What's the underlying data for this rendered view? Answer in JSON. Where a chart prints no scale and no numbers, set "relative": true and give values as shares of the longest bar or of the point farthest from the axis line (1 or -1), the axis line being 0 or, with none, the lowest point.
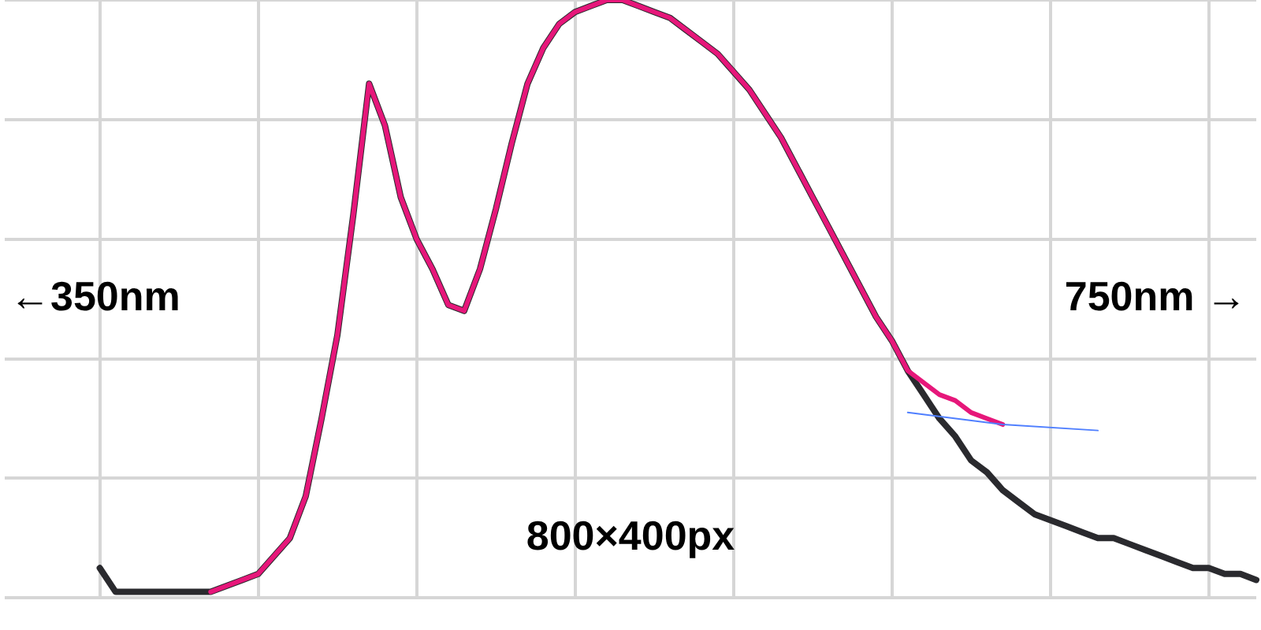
{
  "chart_data": {
    "type": "line",
    "relative": true,
    "grid": true,
    "legend": false,
    "categories": [
      null,
      null,
      null,
      null,
      null,
      null,
      null,
      null,
      null,
      null,
      null,
      null,
      null,
      null,
      null,
      null,
      null,
      null,
      null,
      null,
      null,
      null,
      null,
      null,
      null,
      null,
      null,
      null,
      null,
      null,
      null,
      null,
      null,
      null,
      null,
      null,
      null,
      null,
      null,
      null,
      null,
      null,
      null,
      null,
      null,
      null,
      null,
      null,
      null,
      null,
      null,
      null,
      null,
      null,
      null,
      null,
      null,
      null,
      null,
      null,
      null,
      null,
      null,
      null,
      null,
      null,
      null,
      null,
      null,
      null,
      null,
      null,
      null,
      null,
      null,
      null,
      null,
      null,
      null,
      null
    ],
    "annotations": [
      "←350nm",
      "750nm →",
      "800×400px"
    ],
    "series": [
      {
        "color": "#2a2a2e",
        "values": [
          null,
          null,
          null,
          null,
          null,
          null,
          0.05,
          0.01,
          0.01,
          0.01,
          0.01,
          0.01,
          0.01,
          0.01,
          0.02,
          0.03,
          0.04,
          0.07,
          0.1,
          0.17,
          0.3,
          0.44,
          0.64,
          0.86,
          0.79,
          0.67,
          0.6,
          0.55,
          0.49,
          0.48,
          0.55,
          0.65,
          0.76,
          0.86,
          0.92,
          0.96,
          0.98,
          0.99,
          1.0,
          1.0,
          0.99,
          0.98,
          0.97,
          0.95,
          0.93,
          0.91,
          0.88,
          0.85,
          0.81,
          0.77,
          0.72,
          0.67,
          0.62,
          0.57,
          0.52,
          0.47,
          0.43,
          0.38,
          0.34,
          0.3,
          0.27,
          0.23,
          0.21,
          0.18,
          0.16,
          0.14,
          0.13,
          0.12,
          0.11,
          0.1,
          0.1,
          0.09,
          0.08,
          0.07,
          0.06,
          0.05,
          0.05,
          0.04,
          0.04,
          0.03
        ]
      },
      {
        "color": "#e6177a",
        "values": [
          null,
          null,
          null,
          null,
          null,
          null,
          null,
          null,
          null,
          null,
          null,
          null,
          null,
          0.01,
          0.02,
          0.03,
          0.04,
          0.07,
          0.1,
          0.17,
          0.3,
          0.44,
          0.64,
          0.86,
          0.79,
          0.67,
          0.6,
          0.55,
          0.49,
          0.48,
          0.55,
          0.65,
          0.76,
          0.86,
          0.92,
          0.96,
          0.98,
          0.99,
          1.0,
          1.0,
          0.99,
          0.98,
          0.97,
          0.95,
          0.93,
          0.91,
          0.88,
          0.85,
          0.81,
          0.77,
          0.72,
          0.67,
          0.62,
          0.57,
          0.52,
          0.47,
          0.43,
          0.38,
          0.36,
          0.34,
          0.33,
          0.31,
          0.3,
          0.29,
          null,
          null,
          null,
          null,
          null,
          null,
          null,
          null,
          null,
          null,
          null,
          null,
          null,
          null,
          null,
          null
        ]
      },
      {
        "color": "#4f7fff",
        "values": [
          null,
          null,
          null,
          null,
          null,
          null,
          null,
          null,
          null,
          null,
          null,
          null,
          null,
          null,
          null,
          null,
          null,
          null,
          null,
          null,
          null,
          null,
          null,
          null,
          null,
          null,
          null,
          null,
          null,
          null,
          null,
          null,
          null,
          null,
          null,
          null,
          null,
          null,
          null,
          null,
          null,
          null,
          null,
          null,
          null,
          null,
          null,
          null,
          null,
          null,
          null,
          null,
          null,
          null,
          null,
          null,
          null,
          0.31,
          null,
          null,
          null,
          null,
          null,
          0.29,
          null,
          null,
          null,
          null,
          null,
          0.28,
          null,
          null,
          null,
          null,
          null,
          null,
          null,
          null,
          null,
          null
        ]
      }
    ]
  }
}
